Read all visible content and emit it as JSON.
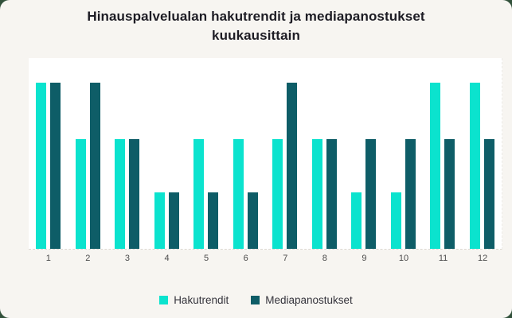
{
  "title": {
    "line1": "Hinauspalvelualan hakutrendit ja mediapanostukset",
    "line2": "kuukausittain"
  },
  "chart_data": {
    "type": "bar",
    "title": "Hinauspalvelualan hakutrendit ja mediapanostukset kuukausittain",
    "categories": [
      "1",
      "2",
      "3",
      "4",
      "5",
      "6",
      "7",
      "8",
      "9",
      "10",
      "11",
      "12"
    ],
    "series": [
      {
        "name": "Hakutrendit",
        "color": "#0be3ce",
        "values": [
          100,
          66,
          66,
          34,
          66,
          66,
          66,
          66,
          34,
          34,
          100,
          100
        ]
      },
      {
        "name": "Mediapanostukset",
        "color": "#0e5d67",
        "values": [
          100,
          100,
          66,
          34,
          34,
          34,
          100,
          66,
          66,
          66,
          66,
          66
        ]
      }
    ],
    "xlabel": "",
    "ylabel": "",
    "ylim": [
      0,
      115
    ],
    "grid": "dashed baseline only, no y-axis tick labels",
    "legend_position": "bottom"
  },
  "legend": {
    "items": [
      {
        "label": "Hakutrendit",
        "color": "#0be3ce"
      },
      {
        "label": "Mediapanostukset",
        "color": "#0e5d67"
      }
    ]
  },
  "colors": {
    "card_background": "#f7f5f1",
    "outer_background": "#32513b",
    "plot_background": "#ffffff",
    "baseline_dash": "#dcd8d1",
    "title_text": "#1d1c24",
    "axis_label_text": "#4b4b4b",
    "legend_text": "#35343c"
  }
}
